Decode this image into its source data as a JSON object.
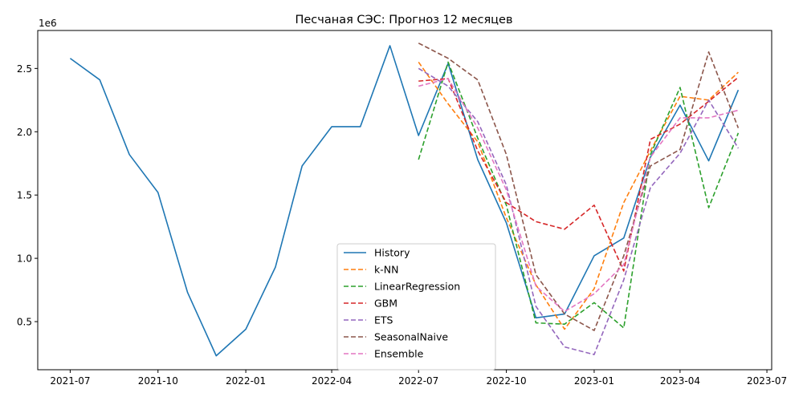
{
  "chart_data": {
    "type": "line",
    "title": "Песчаная СЭС: Прогноз 12 месяцев",
    "y_offset_label": "1e6",
    "xlabel": "",
    "ylabel": "",
    "x_ticks": [
      "2021-07",
      "2021-10",
      "2022-01",
      "2022-04",
      "2022-07",
      "2022-10",
      "2023-01",
      "2023-04",
      "2023-07"
    ],
    "y_ticks": [
      "0.5",
      "1.0",
      "1.5",
      "2.0",
      "2.5"
    ],
    "xlim": [
      "2021-05-28",
      "2023-07-06"
    ],
    "ylim": [
      0.12,
      2.8
    ],
    "grid": false,
    "legend_position": "lower-center",
    "series": [
      {
        "name": "History",
        "color": "#1f77b4",
        "dash": "solid",
        "x": [
          "2021-07",
          "2021-08",
          "2021-09",
          "2021-10",
          "2021-11",
          "2021-12",
          "2022-01",
          "2022-02",
          "2022-03",
          "2022-04",
          "2022-05",
          "2022-06",
          "2022-07",
          "2022-08",
          "2022-09",
          "2022-10",
          "2022-11",
          "2022-12",
          "2023-01",
          "2023-02",
          "2023-03",
          "2023-04",
          "2023-05",
          "2023-06"
        ],
        "values": [
          2.58,
          2.41,
          1.82,
          1.52,
          0.73,
          0.23,
          0.44,
          0.93,
          1.73,
          2.04,
          2.04,
          2.68,
          1.97,
          2.54,
          1.78,
          1.28,
          0.53,
          0.56,
          1.02,
          1.16,
          1.8,
          2.21,
          1.77,
          2.33
        ]
      },
      {
        "name": "k-NN",
        "color": "#ff7f0e",
        "dash": "dashed",
        "x": [
          "2022-07",
          "2022-08",
          "2022-09",
          "2022-10",
          "2022-11",
          "2022-12",
          "2023-01",
          "2023-02",
          "2023-03",
          "2023-04",
          "2023-05",
          "2023-06"
        ],
        "values": [
          2.55,
          2.22,
          1.92,
          1.32,
          0.79,
          0.44,
          0.76,
          1.44,
          1.85,
          2.28,
          2.25,
          2.47
        ]
      },
      {
        "name": "LinearRegression",
        "color": "#2ca02c",
        "dash": "dashed",
        "x": [
          "2022-07",
          "2022-08",
          "2022-09",
          "2022-10",
          "2022-11",
          "2022-12",
          "2023-01",
          "2023-02",
          "2023-03",
          "2023-04",
          "2023-05",
          "2023-06"
        ],
        "values": [
          1.78,
          2.55,
          1.95,
          1.42,
          0.49,
          0.48,
          0.65,
          0.45,
          1.82,
          2.35,
          1.4,
          1.99
        ]
      },
      {
        "name": "GBM",
        "color": "#d62728",
        "dash": "dashed",
        "x": [
          "2022-07",
          "2022-08",
          "2022-09",
          "2022-10",
          "2022-11",
          "2022-12",
          "2023-01",
          "2023-02",
          "2023-03",
          "2023-04",
          "2023-05",
          "2023-06"
        ],
        "values": [
          2.4,
          2.42,
          1.85,
          1.44,
          1.29,
          1.23,
          1.42,
          0.9,
          1.94,
          2.06,
          2.24,
          2.43
        ]
      },
      {
        "name": "ETS",
        "color": "#9467bd",
        "dash": "dashed",
        "x": [
          "2022-07",
          "2022-08",
          "2022-09",
          "2022-10",
          "2022-11",
          "2022-12",
          "2023-01",
          "2023-02",
          "2023-03",
          "2023-04",
          "2023-05",
          "2023-06"
        ],
        "values": [
          2.5,
          2.36,
          2.08,
          1.58,
          0.62,
          0.3,
          0.24,
          0.83,
          1.56,
          1.83,
          2.25,
          1.87
        ]
      },
      {
        "name": "SeasonalNaive",
        "color": "#8c564b",
        "dash": "dashed",
        "x": [
          "2022-07",
          "2022-08",
          "2022-09",
          "2022-10",
          "2022-11",
          "2022-12",
          "2023-01",
          "2023-02",
          "2023-03",
          "2023-04",
          "2023-05",
          "2023-06"
        ],
        "values": [
          2.7,
          2.58,
          2.41,
          1.82,
          0.87,
          0.56,
          0.43,
          1.02,
          1.73,
          1.86,
          2.63,
          2.03
        ]
      },
      {
        "name": "Ensemble",
        "color": "#e377c2",
        "dash": "dashed",
        "x": [
          "2022-07",
          "2022-08",
          "2022-09",
          "2022-10",
          "2022-11",
          "2022-12",
          "2023-01",
          "2023-02",
          "2023-03",
          "2023-04",
          "2023-05",
          "2023-06"
        ],
        "values": [
          2.36,
          2.42,
          2.03,
          1.54,
          0.78,
          0.58,
          0.72,
          0.95,
          1.8,
          2.11,
          2.11,
          2.17
        ]
      }
    ]
  }
}
